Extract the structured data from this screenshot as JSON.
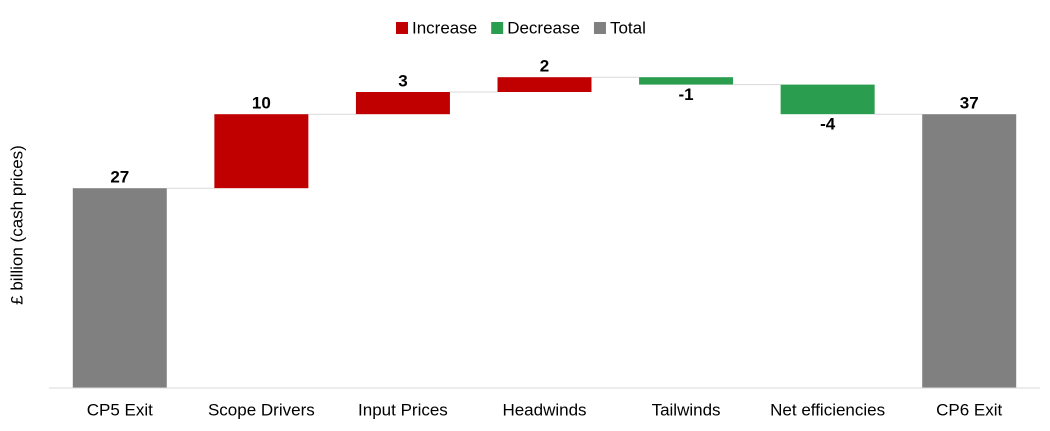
{
  "chart_data": {
    "type": "waterfall",
    "y_label": "£ billion (cash prices)",
    "categories": [
      "CP5 Exit",
      "Scope Drivers",
      "Input Prices",
      "Headwinds",
      "Tailwinds",
      "Net efficiencies",
      "CP6 Exit"
    ],
    "values": [
      27,
      10,
      3,
      2,
      -1,
      -4,
      37
    ],
    "measure": [
      "total",
      "relative",
      "relative",
      "relative",
      "relative",
      "relative",
      "total"
    ],
    "legend": [
      {
        "name": "Increase",
        "color": "#c00000"
      },
      {
        "name": "Decrease",
        "color": "#2a9d4f"
      },
      {
        "name": "Total",
        "color": "#808080"
      }
    ],
    "legend_position": "top",
    "ylim": [
      0,
      45
    ],
    "grid": false
  }
}
